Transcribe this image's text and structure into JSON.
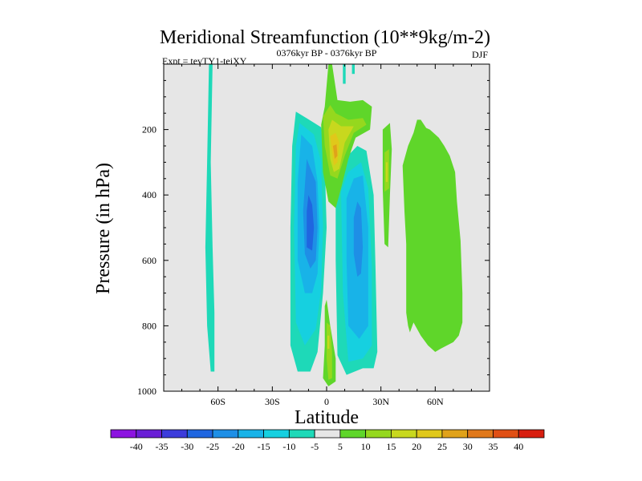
{
  "chart_data": {
    "type": "contour",
    "title": "Meridional Streamfunction (10**9kg/m-2)",
    "experiment": "Expt = tevTY1-teiXY",
    "period": "0376kyr BP - 0376kyr BP",
    "season": "DJF",
    "xlabel": "Latitude",
    "ylabel": "Pressure (in hPa)",
    "xlim": [
      -90,
      90
    ],
    "ylim": [
      1000,
      0
    ],
    "x_ticks": [
      {
        "value": -60,
        "label": "60S"
      },
      {
        "value": -30,
        "label": "30S"
      },
      {
        "value": 0,
        "label": "0"
      },
      {
        "value": 30,
        "label": "30N"
      },
      {
        "value": 60,
        "label": "60N"
      }
    ],
    "y_ticks": [
      {
        "value": 200,
        "label": "200"
      },
      {
        "value": 400,
        "label": "400"
      },
      {
        "value": 600,
        "label": "600"
      },
      {
        "value": 800,
        "label": "800"
      },
      {
        "value": 1000,
        "label": "1000"
      }
    ],
    "missing_color": "#e6e6e6",
    "colorbar": {
      "labels": [
        "-40",
        "-35",
        "-30",
        "-25",
        "-20",
        "-15",
        "-10",
        "-5",
        "5",
        "10",
        "15",
        "20",
        "25",
        "30",
        "35",
        "40"
      ],
      "colors": [
        "#8c14e0",
        "#6a1fd6",
        "#3c3cdb",
        "#1f66e0",
        "#1e8fe6",
        "#18b3e8",
        "#16d0e0",
        "#1ed9b8",
        "#e6e6e6",
        "#5fd62a",
        "#95d81e",
        "#c8d81e",
        "#e0c81a",
        "#e0a21a",
        "#e0781a",
        "#e04f14",
        "#d81e10"
      ]
    },
    "regions": [
      {
        "name": "tropical-minus-5",
        "level": -5,
        "color": "#1ed9b8",
        "polygon": [
          [
            -17,
            -145
          ],
          [
            -12,
            -162
          ],
          [
            -3,
            -193
          ],
          [
            -1,
            -300
          ],
          [
            0,
            -500
          ],
          [
            -2,
            -700
          ],
          [
            -5,
            -880
          ],
          [
            -9,
            -940
          ],
          [
            -16,
            -940
          ],
          [
            -20,
            -860
          ],
          [
            -20,
            -500
          ],
          [
            -19,
            -250
          ]
        ]
      },
      {
        "name": "tropical-minus-10",
        "level": -10,
        "color": "#16d0e0",
        "polygon": [
          [
            -15,
            -180
          ],
          [
            -7,
            -215
          ],
          [
            -3,
            -300
          ],
          [
            -2,
            -500
          ],
          [
            -3,
            -690
          ],
          [
            -6,
            -810
          ],
          [
            -12,
            -860
          ],
          [
            -17,
            -790
          ],
          [
            -18,
            -500
          ],
          [
            -17,
            -250
          ]
        ]
      },
      {
        "name": "tropical-minus-15",
        "level": -15,
        "color": "#18b3e8",
        "polygon": [
          [
            -14,
            -215
          ],
          [
            -8,
            -250
          ],
          [
            -5,
            -360
          ],
          [
            -4,
            -500
          ],
          [
            -5,
            -640
          ],
          [
            -8,
            -700
          ],
          [
            -12,
            -700
          ],
          [
            -16,
            -600
          ],
          [
            -16,
            -360
          ]
        ]
      },
      {
        "name": "tropical-minus-20",
        "level": -20,
        "color": "#1e8fe6",
        "polygon": [
          [
            -11,
            -290
          ],
          [
            -6,
            -360
          ],
          [
            -5,
            -500
          ],
          [
            -6,
            -600
          ],
          [
            -9,
            -625
          ],
          [
            -12,
            -580
          ],
          [
            -13,
            -450
          ]
        ]
      },
      {
        "name": "tropical-minus-25",
        "level": -25,
        "color": "#1f66e0",
        "polygon": [
          [
            -10,
            -400
          ],
          [
            -8,
            -430
          ],
          [
            -7,
            -500
          ],
          [
            -8,
            -570
          ],
          [
            -11,
            -560
          ],
          [
            -11,
            -450
          ]
        ]
      },
      {
        "name": "north-minus-5",
        "level": -5,
        "color": "#1ed9b8",
        "polygon": [
          [
            5,
            -375
          ],
          [
            10,
            -290
          ],
          [
            17,
            -250
          ],
          [
            22,
            -265
          ],
          [
            26,
            -400
          ],
          [
            27,
            -620
          ],
          [
            28,
            -880
          ],
          [
            26,
            -930
          ],
          [
            20,
            -930
          ],
          [
            11,
            -950
          ],
          [
            6,
            -890
          ],
          [
            5,
            -600
          ]
        ]
      },
      {
        "name": "north-minus-10",
        "level": -10,
        "color": "#16d0e0",
        "polygon": [
          [
            8,
            -390
          ],
          [
            12,
            -330
          ],
          [
            19,
            -300
          ],
          [
            23,
            -380
          ],
          [
            25,
            -620
          ],
          [
            25,
            -860
          ],
          [
            20,
            -900
          ],
          [
            12,
            -910
          ],
          [
            9,
            -700
          ]
        ]
      },
      {
        "name": "north-minus-15",
        "level": -15,
        "color": "#18b3e8",
        "polygon": [
          [
            11,
            -410
          ],
          [
            15,
            -350
          ],
          [
            20,
            -340
          ],
          [
            23,
            -500
          ],
          [
            23,
            -800
          ],
          [
            18,
            -840
          ],
          [
            12,
            -800
          ],
          [
            11,
            -600
          ]
        ]
      },
      {
        "name": "north-minus-20",
        "level": -20,
        "color": "#1e8fe6",
        "polygon": [
          [
            15,
            -470
          ],
          [
            17,
            -420
          ],
          [
            19,
            -440
          ],
          [
            20,
            -560
          ],
          [
            19,
            -640
          ],
          [
            17,
            -650
          ],
          [
            15,
            -580
          ]
        ]
      },
      {
        "name": "southern-strip",
        "level": -5,
        "color": "#1ed9b8",
        "polygon": [
          [
            -65,
            0
          ],
          [
            -63,
            0
          ],
          [
            -64,
            -300
          ],
          [
            -63,
            -560
          ],
          [
            -62,
            -760
          ],
          [
            -62,
            -940
          ],
          [
            -64,
            -940
          ],
          [
            -66,
            -800
          ],
          [
            -67,
            -560
          ],
          [
            -66,
            -300
          ]
        ]
      },
      {
        "name": "top-sliver-a",
        "level": -5,
        "color": "#1ed9b8",
        "polygon": [
          [
            9,
            0
          ],
          [
            10.5,
            0
          ],
          [
            10.5,
            -60
          ],
          [
            9,
            -60
          ]
        ]
      },
      {
        "name": "top-sliver-b",
        "level": -5,
        "color": "#1ed9b8",
        "polygon": [
          [
            14,
            0
          ],
          [
            15.5,
            0
          ],
          [
            15.5,
            -30
          ],
          [
            14,
            -30
          ]
        ]
      },
      {
        "name": "equatorial-plus-5",
        "level": 5,
        "color": "#5fd62a",
        "polygon": [
          [
            -3,
            -185
          ],
          [
            -1,
            -130
          ],
          [
            1,
            0
          ],
          [
            3,
            0
          ],
          [
            6,
            -110
          ],
          [
            13,
            -115
          ],
          [
            20,
            -110
          ],
          [
            25,
            -130
          ],
          [
            24,
            -200
          ],
          [
            16,
            -225
          ],
          [
            12,
            -290
          ],
          [
            8,
            -380
          ],
          [
            5,
            -440
          ],
          [
            1,
            -420
          ],
          [
            -2,
            -330
          ]
        ]
      },
      {
        "name": "equatorial-plus-10",
        "level": 10,
        "color": "#95d81e",
        "polygon": [
          [
            -2,
            -160
          ],
          [
            2,
            -125
          ],
          [
            5,
            -150
          ],
          [
            12,
            -170
          ],
          [
            20,
            -165
          ],
          [
            22,
            -185
          ],
          [
            15,
            -210
          ],
          [
            10,
            -280
          ],
          [
            6,
            -350
          ],
          [
            2,
            -340
          ],
          [
            -1,
            -250
          ]
        ]
      },
      {
        "name": "equatorial-plus-15",
        "level": 15,
        "color": "#c8d81e",
        "polygon": [
          [
            1,
            -200
          ],
          [
            3,
            -170
          ],
          [
            8,
            -190
          ],
          [
            15,
            -190
          ],
          [
            10,
            -240
          ],
          [
            7,
            -320
          ],
          [
            4,
            -330
          ],
          [
            2,
            -290
          ]
        ]
      },
      {
        "name": "equatorial-plus-20",
        "level": 20,
        "color": "#e0c81a",
        "polygon": [
          [
            2,
            -220
          ],
          [
            5,
            -210
          ],
          [
            7,
            -240
          ],
          [
            6,
            -300
          ],
          [
            4,
            -310
          ],
          [
            3,
            -270
          ]
        ]
      },
      {
        "name": "equatorial-plus-25",
        "level": 25,
        "color": "#e0a21a",
        "polygon": [
          [
            3.5,
            -250
          ],
          [
            5.5,
            -245
          ],
          [
            6,
            -280
          ],
          [
            4.5,
            -290
          ]
        ]
      },
      {
        "name": "lower-plus-5",
        "level": 5,
        "color": "#5fd62a",
        "polygon": [
          [
            -1,
            -740
          ],
          [
            0,
            -720
          ],
          [
            2,
            -800
          ],
          [
            5,
            -900
          ],
          [
            5,
            -970
          ],
          [
            1,
            -985
          ],
          [
            -2,
            -960
          ],
          [
            -1,
            -860
          ]
        ]
      },
      {
        "name": "lower-plus-10",
        "level": 10,
        "color": "#95d81e",
        "polygon": [
          [
            0,
            -790
          ],
          [
            2,
            -800
          ],
          [
            3,
            -880
          ],
          [
            3,
            -960
          ],
          [
            1,
            -965
          ],
          [
            0,
            -900
          ]
        ]
      },
      {
        "name": "lower-plus-15",
        "level": 15,
        "color": "#c8d81e",
        "polygon": [
          [
            0.5,
            -830
          ],
          [
            1.5,
            -830
          ],
          [
            1.5,
            -870
          ],
          [
            0.5,
            -870
          ]
        ]
      },
      {
        "name": "n30-plus-5",
        "level": 5,
        "color": "#5fd62a",
        "polygon": [
          [
            31,
            -200
          ],
          [
            35,
            -180
          ],
          [
            36,
            -260
          ],
          [
            35,
            -400
          ],
          [
            34,
            -560
          ],
          [
            32,
            -550
          ],
          [
            31,
            -380
          ]
        ]
      },
      {
        "name": "n30-plus-10",
        "level": 10,
        "color": "#95d81e",
        "polygon": [
          [
            32,
            -270
          ],
          [
            34.5,
            -260
          ],
          [
            34.5,
            -380
          ],
          [
            32,
            -390
          ]
        ]
      },
      {
        "name": "n30-plus-15",
        "level": 15,
        "color": "#c8d81e",
        "polygon": [
          [
            32.7,
            -300
          ],
          [
            33.8,
            -300
          ],
          [
            33.8,
            -360
          ],
          [
            32.7,
            -360
          ]
        ]
      },
      {
        "name": "n50-plus-5",
        "level": 5,
        "color": "#5fd62a",
        "polygon": [
          [
            42,
            -310
          ],
          [
            45,
            -250
          ],
          [
            48,
            -210
          ],
          [
            50,
            -170
          ],
          [
            52,
            -170
          ],
          [
            55,
            -195
          ],
          [
            57,
            -200
          ],
          [
            62,
            -225
          ],
          [
            65,
            -250
          ],
          [
            68,
            -280
          ],
          [
            71,
            -330
          ],
          [
            72,
            -420
          ],
          [
            74,
            -540
          ],
          [
            75,
            -700
          ],
          [
            75,
            -790
          ],
          [
            73,
            -830
          ],
          [
            70,
            -850
          ],
          [
            63,
            -870
          ],
          [
            60,
            -880
          ],
          [
            56,
            -860
          ],
          [
            52,
            -830
          ],
          [
            48,
            -790
          ],
          [
            46,
            -820
          ],
          [
            45,
            -800
          ],
          [
            44,
            -760
          ],
          [
            44,
            -680
          ],
          [
            44,
            -550
          ],
          [
            43,
            -450
          ]
        ]
      }
    ]
  }
}
